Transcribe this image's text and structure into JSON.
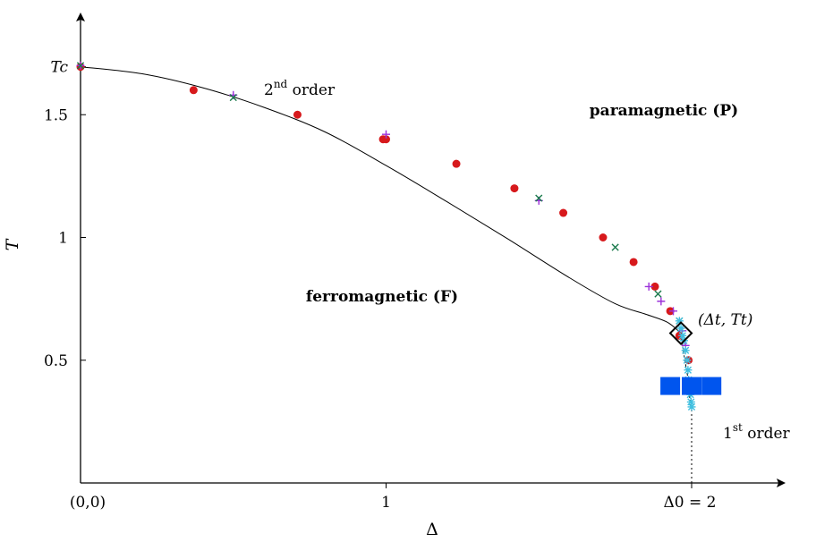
{
  "chart_data": {
    "type": "line",
    "xlabel": "Δ",
    "ylabel": "T",
    "xlim": [
      0,
      2.3
    ],
    "ylim": [
      0,
      1.85
    ],
    "grid": false,
    "x_ticks": [
      {
        "value": 0,
        "label": "(0,0)"
      },
      {
        "value": 1,
        "label": "1"
      },
      {
        "value": 2,
        "label": "Δ0 = 2"
      }
    ],
    "y_ticks": [
      {
        "value": 0.5,
        "label": "0.5"
      },
      {
        "value": 1,
        "label": "1"
      },
      {
        "value": 1.5,
        "label": "1.5"
      },
      {
        "value": 1.695,
        "label": "Tc"
      }
    ],
    "regions": {
      "paramagnetic": "paramagnetic (P)",
      "ferromagnetic": "ferromagnetic (F)"
    },
    "annotations": {
      "second_order": {
        "main": "2",
        "sup": "nd",
        "rest": " order"
      },
      "first_order": {
        "main": "1",
        "sup": "st",
        "rest": " order"
      },
      "tricritical": "(Δt, Tt)"
    },
    "tricritical_point": {
      "x": 1.965,
      "y": 0.61
    },
    "transition_line": {
      "x": [
        0,
        0.2,
        0.4,
        0.6,
        0.8,
        1.0,
        1.2,
        1.4,
        1.6,
        1.75,
        1.85,
        1.92,
        1.965
      ],
      "y": [
        1.695,
        1.667,
        1.61,
        1.53,
        1.43,
        1.293,
        1.145,
        0.993,
        0.836,
        0.73,
        0.687,
        0.655,
        0.61
      ]
    },
    "first_order_line": {
      "x": [
        1.965,
        1.975,
        1.985,
        1.99,
        1.995,
        2.0
      ],
      "y": [
        0.61,
        0.52,
        0.45,
        0.4,
        0.33,
        0.3
      ]
    },
    "series": [
      {
        "marker": "circle",
        "color": "#d7191c",
        "x": [
          0,
          0.37,
          0.71,
          0.99,
          1.0,
          1.23,
          1.42,
          1.58,
          1.71,
          1.81,
          1.88,
          1.93,
          1.96,
          1.99
        ],
        "y": [
          1.695,
          1.6,
          1.5,
          1.4,
          1.4,
          1.3,
          1.2,
          1.1,
          1.0,
          0.9,
          0.8,
          0.7,
          0.6,
          0.5
        ]
      },
      {
        "marker": "plus",
        "color": "#9b30d9",
        "x": [
          0,
          0.5,
          1.0,
          1.5,
          1.86,
          1.9,
          1.94,
          1.97,
          1.98
        ],
        "y": [
          1.7,
          1.58,
          1.42,
          1.15,
          0.8,
          0.74,
          0.7,
          0.62,
          0.56
        ]
      },
      {
        "marker": "cross",
        "color": "#1a7a4c",
        "x": [
          0,
          0.5,
          1.5,
          1.75,
          1.89,
          1.96
        ],
        "y": [
          1.7,
          1.57,
          1.16,
          0.96,
          0.77,
          0.66
        ]
      },
      {
        "marker": "asterisk",
        "color": "#3fbfe0",
        "x": [
          1.96,
          1.965,
          1.97,
          1.975,
          1.98,
          1.985,
          1.988,
          1.99,
          1.993,
          1.996,
          1.998,
          2.0
        ],
        "y": [
          0.66,
          0.63,
          0.6,
          0.58,
          0.54,
          0.5,
          0.46,
          0.42,
          0.39,
          0.36,
          0.33,
          0.31
        ]
      },
      {
        "marker": "square",
        "color": "#0055ee",
        "x": [
          1.93,
          2.0,
          2.065
        ],
        "y": [
          0.395,
          0.395,
          0.395
        ]
      }
    ],
    "guide_line": {
      "x": 2,
      "y_from": 0,
      "y_to": 0.3
    }
  }
}
